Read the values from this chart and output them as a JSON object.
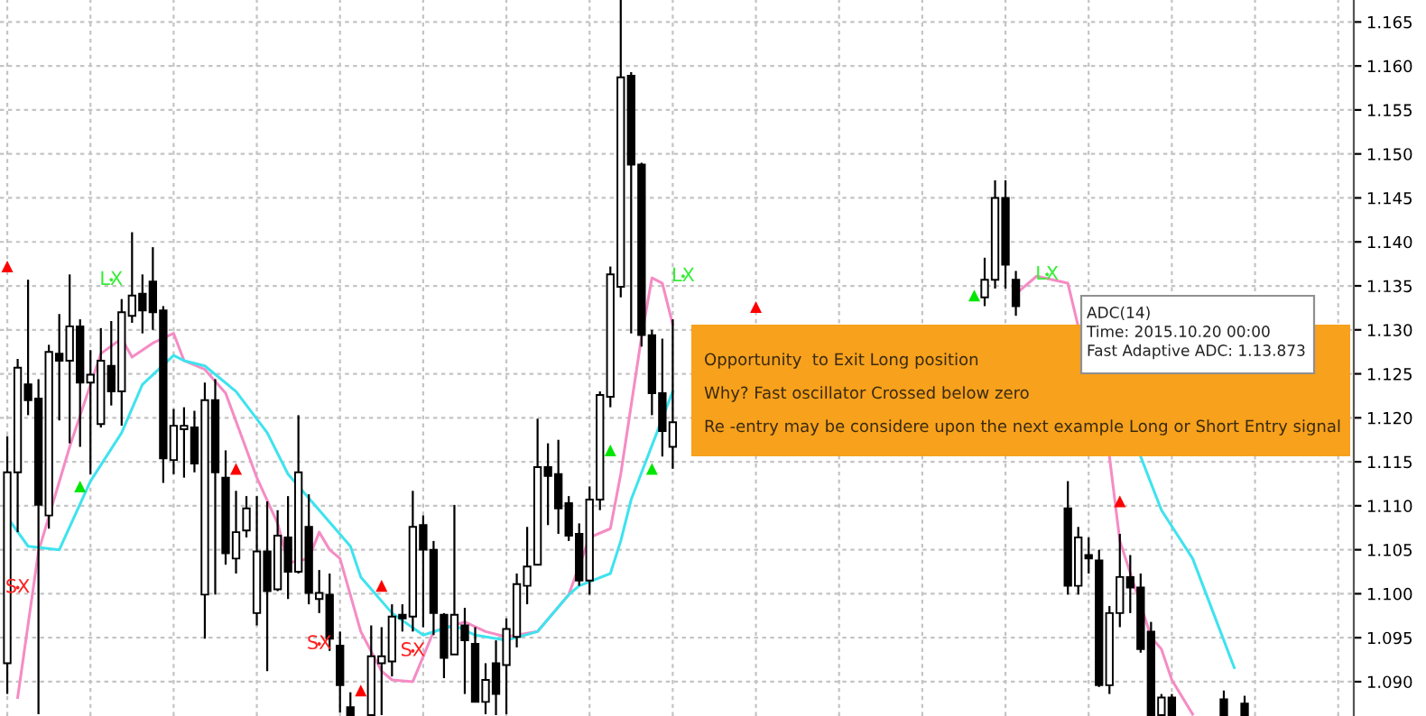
{
  "chart_data": {
    "type": "candlestick",
    "categories": [
      null,
      null,
      null,
      null,
      null,
      null,
      null,
      null,
      null,
      null,
      null,
      null,
      null,
      null,
      null,
      null,
      null,
      null,
      null,
      null,
      null,
      null,
      null,
      null,
      null,
      null,
      null,
      null,
      null,
      null,
      null,
      null,
      null,
      null,
      null,
      null,
      null,
      null,
      null,
      null,
      null,
      null,
      null,
      null,
      null,
      null,
      null,
      null,
      null,
      null,
      null,
      null,
      null,
      null,
      null,
      null,
      null,
      null,
      null,
      null,
      null,
      null,
      null,
      null,
      null,
      null,
      null,
      null,
      null,
      null,
      null,
      null,
      null,
      null,
      null,
      null,
      null,
      null,
      null,
      null,
      null,
      null,
      null,
      null,
      null,
      null,
      null,
      null,
      null,
      null,
      null,
      null,
      null,
      null,
      null,
      null,
      null,
      null,
      null,
      null,
      null,
      null,
      null,
      null,
      null,
      null,
      null,
      null,
      null,
      null,
      null,
      null,
      null,
      null,
      null,
      null,
      null,
      null,
      null,
      null,
      null,
      null,
      null,
      null,
      null,
      null,
      null,
      null,
      null,
      null
    ],
    "ohlc": [
      [
        1.0921,
        1.1179,
        1.0886,
        1.1138
      ],
      [
        1.1138,
        1.1267,
        1.107,
        1.1257
      ],
      [
        1.1238,
        1.1357,
        1.1203,
        1.122
      ],
      [
        1.1222,
        1.1244,
        1.0863,
        1.1101
      ],
      [
        1.1089,
        1.1283,
        1.1074,
        1.1275
      ],
      [
        1.1273,
        1.1318,
        1.1197,
        1.1265
      ],
      [
        1.1265,
        1.1363,
        1.1171,
        1.1304
      ],
      [
        1.1304,
        1.1312,
        1.1167,
        1.124
      ],
      [
        1.124,
        1.1277,
        1.1136,
        1.1249
      ],
      [
        1.1193,
        1.1302,
        1.1189,
        1.1265
      ],
      [
        1.1259,
        1.131,
        1.1214,
        1.123
      ],
      [
        1.123,
        1.1335,
        1.1191,
        1.132
      ],
      [
        1.1316,
        1.1411,
        1.1308,
        1.1339
      ],
      [
        1.1341,
        1.1363,
        1.1296,
        1.1322
      ],
      [
        1.1355,
        1.1394,
        1.13,
        1.132
      ],
      [
        1.1322,
        1.1327,
        1.1126,
        1.1154
      ],
      [
        1.1152,
        1.121,
        1.1136,
        1.1191
      ],
      [
        1.1187,
        1.1212,
        1.1132,
        1.1191
      ],
      [
        1.1189,
        1.1208,
        1.1138,
        1.1148
      ],
      [
        1.0999,
        1.124,
        1.0949,
        1.122
      ],
      [
        1.122,
        1.1244,
        1.0999,
        1.1138
      ],
      [
        1.1132,
        1.1163,
        1.1033,
        1.1046
      ],
      [
        1.104,
        1.1117,
        1.1023,
        1.107
      ],
      [
        1.1072,
        1.1111,
        1.1064,
        1.1097
      ],
      [
        1.0978,
        1.1111,
        1.0964,
        1.1048
      ],
      [
        1.1048,
        1.1105,
        1.0912,
        1.1003
      ],
      [
        1.1005,
        1.1095,
        1.1003,
        1.1066
      ],
      [
        1.1064,
        1.1111,
        1.0994,
        1.1025
      ],
      [
        1.1025,
        1.1203,
        1.1023,
        1.1138
      ],
      [
        1.1076,
        1.1113,
        1.0988,
        1.1001
      ],
      [
        1.0994,
        1.1027,
        1.0978,
        1.1001
      ],
      [
        1.0999,
        1.1023,
        1.0935,
        1.0949
      ],
      [
        1.0941,
        1.0957,
        1.0865,
        1.0896
      ],
      [
        1.0871,
        1.0888,
        1.0862,
        1.0862
      ],
      null,
      [
        1.0862,
        1.0964,
        1.0862,
        1.0929
      ],
      [
        1.0921,
        1.0962,
        1.0862,
        1.0929
      ],
      [
        1.0923,
        1.0988,
        1.0906,
        1.0974
      ],
      [
        1.0976,
        1.0988,
        1.0957,
        1.0972
      ],
      [
        1.0974,
        1.1117,
        1.0957,
        1.1076
      ],
      [
        1.1078,
        1.1089,
        1.0962,
        1.105
      ],
      [
        1.105,
        1.106,
        1.0953,
        1.0978
      ],
      [
        1.0976,
        1.0978,
        1.0904,
        1.0927
      ],
      [
        1.0931,
        1.1101,
        1.0931,
        1.0976
      ],
      [
        1.0964,
        1.0984,
        1.0886,
        1.0947
      ],
      [
        1.0943,
        1.0962,
        1.0877,
        1.0877
      ],
      [
        1.0877,
        1.0921,
        1.0863,
        1.0902
      ],
      [
        1.0921,
        1.0947,
        1.0862,
        1.0886
      ],
      [
        1.0919,
        1.0972,
        1.0863,
        1.096
      ],
      [
        1.0951,
        1.1023,
        1.0939,
        1.1011
      ],
      [
        1.1009,
        1.1076,
        1.0988,
        1.1031
      ],
      [
        1.1033,
        1.1199,
        1.1033,
        1.1144
      ],
      [
        1.1144,
        1.1171,
        1.1078,
        1.1134
      ],
      [
        1.1136,
        1.1175,
        1.1068,
        1.1097
      ],
      [
        1.1103,
        1.1111,
        1.106,
        1.1066
      ],
      [
        1.1068,
        1.108,
        1.1009,
        1.1015
      ],
      [
        1.1015,
        1.1122,
        1.0999,
        1.1107
      ],
      [
        1.1107,
        1.123,
        1.1095,
        1.1226
      ],
      [
        1.1224,
        1.1372,
        1.1212,
        1.1363
      ],
      [
        1.1349,
        1.1675,
        1.1337,
        1.1587
      ],
      [
        1.1589,
        1.1593,
        1.1296,
        1.1488
      ],
      [
        1.1488,
        1.149,
        1.1281,
        1.1294
      ],
      [
        1.1294,
        1.13,
        1.1203,
        1.1228
      ],
      [
        1.1228,
        1.129,
        1.1156,
        1.1185
      ],
      [
        1.1167,
        1.1312,
        1.1142,
        1.1195
      ],
      null,
      null,
      null,
      null,
      null,
      null,
      null,
      null,
      null,
      null,
      null,
      null,
      null,
      null,
      null,
      null,
      null,
      null,
      null,
      null,
      null,
      null,
      null,
      null,
      null,
      null,
      null,
      null,
      null,
      [
        1.1337,
        1.1382,
        1.1327,
        1.1357
      ],
      [
        1.1357,
        1.147,
        1.1347,
        1.145
      ],
      [
        1.145,
        1.147,
        1.1347,
        1.1374
      ],
      [
        1.1357,
        1.1367,
        1.1316,
        1.1327
      ],
      null,
      null,
      null,
      null,
      [
        1.1097,
        1.1128,
        1.0999,
        1.1009
      ],
      [
        1.1009,
        1.1076,
        1.0999,
        1.1064
      ],
      [
        1.1044,
        1.1064,
        1.1023,
        1.104
      ],
      [
        1.1038,
        1.105,
        1.0894,
        1.0896
      ],
      [
        1.0896,
        1.0986,
        1.0886,
        1.0978
      ],
      [
        1.0978,
        1.1068,
        1.0962,
        1.1019
      ],
      [
        1.1019,
        1.1044,
        1.0978,
        1.1007
      ],
      [
        1.1007,
        1.1023,
        1.0933,
        1.0937
      ],
      [
        1.0957,
        1.0968,
        1.0862,
        1.0862
      ],
      [
        1.0862,
        1.0886,
        1.0862,
        1.0882
      ],
      [
        1.0882,
        1.0886,
        1.0862,
        1.0862
      ],
      null,
      null,
      null,
      null,
      [
        1.088,
        1.089,
        1.0862,
        1.0862
      ],
      null,
      [
        1.0875,
        1.0884,
        1.0862,
        1.0862
      ],
      null,
      null,
      null,
      null,
      null,
      null,
      null,
      null,
      null,
      null
    ],
    "series": [
      {
        "type": "line",
        "color": "#f58cc4",
        "values": [
          null,
          1.0882,
          null,
          1.1048,
          null,
          null,
          1.1167,
          null,
          null,
          1.1273,
          null,
          1.129,
          1.1269,
          null,
          1.1285,
          null,
          1.1296,
          1.1265,
          null,
          1.1255,
          null,
          1.1228,
          null,
          null,
          1.1132,
          null,
          1.108,
          1.1035,
          null,
          1.104,
          1.107,
          1.105,
          1.104,
          null,
          1.0957,
          null,
          1.0912,
          1.0902,
          null,
          1.09,
          null,
          1.0957,
          null,
          null,
          1.0968,
          null,
          1.0957,
          null,
          1.0951,
          null,
          null,
          1.0957,
          null,
          null,
          1.0999,
          null,
          1.1064,
          null,
          1.1074,
          1.1136,
          null,
          1.1292,
          1.1359,
          1.1353,
          1.1306,
          null,
          null,
          null,
          null,
          null,
          null,
          null,
          null,
          null,
          null,
          null,
          null,
          null,
          null,
          null,
          null,
          null,
          null,
          null,
          null,
          null,
          null,
          null,
          null,
          null,
          null,
          null,
          null,
          null,
          null,
          null,
          null,
          1.1341,
          null,
          1.1361,
          null,
          null,
          1.1353,
          null,
          null,
          null,
          1.1156,
          1.106,
          null,
          null,
          1.0951,
          1.0937,
          1.0902,
          null,
          1.0863,
          null,
          null,
          null,
          null,
          null,
          null,
          null,
          null,
          null,
          null,
          null,
          null,
          null,
          null,
          null
        ]
      },
      {
        "type": "line",
        "color": "#3fe3ee",
        "values": [
          1.1087,
          null,
          1.1054,
          null,
          null,
          1.105,
          null,
          null,
          1.1128,
          null,
          null,
          1.1183,
          null,
          1.1238,
          null,
          null,
          1.1271,
          1.1265,
          null,
          1.1259,
          null,
          null,
          1.123,
          null,
          null,
          1.1183,
          null,
          1.1136,
          null,
          null,
          1.1095,
          null,
          null,
          1.1054,
          1.1019,
          null,
          null,
          1.0978,
          null,
          null,
          1.0953,
          null,
          null,
          1.0964,
          null,
          1.0953,
          null,
          null,
          1.0947,
          null,
          null,
          1.0957,
          null,
          null,
          1.0999,
          1.1009,
          null,
          null,
          1.1023,
          1.106,
          1.1107,
          null,
          null,
          null,
          1.123,
          null,
          null,
          null,
          null,
          null,
          null,
          null,
          null,
          null,
          null,
          null,
          null,
          null,
          null,
          null,
          null,
          null,
          null,
          null,
          null,
          null,
          null,
          null,
          null,
          null,
          null,
          null,
          null,
          null,
          null,
          null,
          null,
          null,
          null,
          null,
          null,
          null,
          null,
          null,
          null,
          null,
          null,
          null,
          null,
          1.1156,
          null,
          1.1095,
          null,
          null,
          1.104,
          null,
          1.0978,
          null,
          1.0916,
          null,
          null,
          null,
          null,
          null,
          null,
          null,
          null,
          null,
          null,
          null
        ]
      },
      {
        "type": "scatter",
        "marker": "triangle",
        "color": "#ff0000",
        "values": [
          1.1372,
          null,
          null,
          null,
          null,
          null,
          null,
          null,
          null,
          null,
          null,
          null,
          null,
          null,
          null,
          null,
          null,
          null,
          null,
          null,
          null,
          null,
          1.1142,
          null,
          null,
          null,
          null,
          null,
          null,
          null,
          null,
          null,
          null,
          null,
          1.089,
          null,
          1.1009,
          null,
          null,
          null,
          null,
          null,
          null,
          null,
          null,
          null,
          null,
          null,
          null,
          null,
          null,
          null,
          null,
          null,
          null,
          null,
          null,
          null,
          null,
          null,
          null,
          null,
          null,
          null,
          null,
          null,
          null,
          null,
          null,
          null,
          null,
          null,
          1.1326,
          null,
          null,
          null,
          null,
          null,
          null,
          null,
          null,
          null,
          null,
          null,
          null,
          null,
          null,
          null,
          null,
          null,
          null,
          null,
          null,
          null,
          null,
          null,
          null,
          null,
          null,
          null,
          null,
          null,
          null,
          null,
          null,
          null,
          null,
          1.1105,
          null,
          null,
          null,
          null,
          null,
          null,
          null,
          null,
          null,
          null,
          null,
          null,
          null,
          null,
          null,
          null,
          null,
          null,
          null,
          null,
          null,
          null
        ]
      },
      {
        "type": "scatter",
        "marker": "triangle",
        "color": "#00e600",
        "values": [
          null,
          null,
          null,
          null,
          null,
          null,
          null,
          1.1122,
          null,
          null,
          null,
          null,
          null,
          null,
          null,
          null,
          null,
          null,
          null,
          null,
          null,
          null,
          null,
          null,
          null,
          null,
          null,
          null,
          null,
          null,
          null,
          null,
          null,
          null,
          null,
          null,
          null,
          null,
          null,
          null,
          null,
          null,
          null,
          null,
          null,
          null,
          null,
          null,
          null,
          null,
          null,
          null,
          null,
          null,
          null,
          null,
          null,
          null,
          1.1163,
          null,
          null,
          null,
          1.1142,
          null,
          null,
          null,
          null,
          null,
          null,
          null,
          null,
          null,
          null,
          null,
          null,
          null,
          null,
          null,
          null,
          null,
          null,
          null,
          null,
          null,
          null,
          null,
          null,
          null,
          null,
          null,
          null,
          null,
          null,
          1.1339,
          null,
          null,
          null,
          null,
          null,
          null,
          null,
          null,
          null,
          null,
          null,
          null,
          null,
          null,
          null,
          null,
          null,
          null,
          null,
          null,
          null,
          null,
          null,
          null,
          null,
          null,
          null,
          null,
          null,
          null,
          null,
          null,
          null,
          null,
          null,
          null
        ]
      },
      {
        "type": "scatter",
        "marker": "none",
        "color": "#33ee33",
        "value_labels": [
          null,
          null,
          null,
          null,
          null,
          null,
          null,
          null,
          null,
          null,
          "LX",
          null,
          null,
          null,
          null,
          null,
          null,
          null,
          null,
          null,
          null,
          null,
          null,
          null,
          null,
          null,
          null,
          null,
          null,
          null,
          null,
          null,
          null,
          null,
          null,
          null,
          null,
          null,
          null,
          null,
          null,
          null,
          null,
          null,
          null,
          null,
          null,
          null,
          null,
          null,
          null,
          null,
          null,
          null,
          null,
          null,
          null,
          null,
          null,
          null,
          null,
          null,
          null,
          null,
          null,
          "LX",
          null,
          null,
          null,
          null,
          null,
          null,
          null,
          null,
          null,
          null,
          null,
          null,
          null,
          null,
          null,
          null,
          null,
          null,
          null,
          null,
          null,
          null,
          null,
          null,
          null,
          null,
          null,
          null,
          null,
          null,
          null,
          null,
          null,
          null,
          "LX",
          null,
          null,
          null,
          null,
          null,
          null,
          null,
          null,
          null,
          null,
          null,
          null,
          null,
          null,
          null,
          null,
          null,
          null,
          null,
          null,
          null,
          null,
          null,
          null,
          null,
          null,
          null,
          null,
          null
        ],
        "values": [
          null,
          null,
          null,
          null,
          null,
          null,
          null,
          null,
          null,
          null,
          1.1357,
          null,
          null,
          null,
          null,
          null,
          null,
          null,
          null,
          null,
          null,
          null,
          null,
          null,
          null,
          null,
          null,
          null,
          null,
          null,
          null,
          null,
          null,
          null,
          null,
          null,
          null,
          null,
          null,
          null,
          null,
          null,
          null,
          null,
          null,
          null,
          null,
          null,
          null,
          null,
          null,
          null,
          null,
          null,
          null,
          null,
          null,
          null,
          null,
          null,
          null,
          null,
          null,
          null,
          null,
          1.1361,
          null,
          null,
          null,
          null,
          null,
          null,
          null,
          null,
          null,
          null,
          null,
          null,
          null,
          null,
          null,
          null,
          null,
          null,
          null,
          null,
          null,
          null,
          null,
          null,
          null,
          null,
          null,
          null,
          null,
          null,
          null,
          null,
          null,
          null,
          1.1363,
          null,
          null,
          null,
          null,
          null,
          null,
          null,
          null,
          null,
          null,
          null,
          null,
          null,
          null,
          null,
          null,
          null,
          null,
          null,
          null,
          null,
          null,
          null,
          null,
          null,
          null,
          null,
          null,
          null
        ]
      },
      {
        "type": "scatter",
        "marker": "none",
        "color": "#ff2020",
        "value_labels": [
          null,
          "SX",
          null,
          null,
          null,
          null,
          null,
          null,
          null,
          null,
          null,
          null,
          null,
          null,
          null,
          null,
          null,
          null,
          null,
          null,
          null,
          null,
          null,
          null,
          null,
          null,
          null,
          null,
          null,
          null,
          "SX",
          null,
          null,
          null,
          null,
          null,
          null,
          null,
          null,
          "SX",
          null,
          null,
          null,
          null,
          null,
          null,
          null,
          null,
          null,
          null,
          null,
          null,
          null,
          null,
          null,
          null,
          null,
          null,
          null,
          null,
          null,
          null,
          null,
          null,
          null,
          null,
          null,
          null,
          null,
          null,
          null,
          null,
          null,
          null,
          null,
          null,
          null,
          null,
          null,
          null,
          null,
          null,
          null,
          null,
          null,
          null,
          null,
          null,
          null,
          null,
          null,
          null,
          null,
          null,
          null,
          null,
          null,
          null,
          null,
          null,
          null,
          null,
          null,
          null,
          null,
          null,
          null,
          null,
          null,
          null,
          null,
          null,
          null,
          null,
          null,
          null,
          null,
          null,
          null,
          null,
          null,
          null,
          null,
          null,
          null,
          null,
          null,
          null,
          null,
          null
        ],
        "values": [
          null,
          1.1007,
          null,
          null,
          null,
          null,
          null,
          null,
          null,
          null,
          null,
          null,
          null,
          null,
          null,
          null,
          null,
          null,
          null,
          null,
          null,
          null,
          null,
          null,
          null,
          null,
          null,
          null,
          null,
          null,
          1.0943,
          null,
          null,
          null,
          null,
          null,
          null,
          null,
          null,
          1.0935,
          null,
          null,
          null,
          null,
          null,
          null,
          null,
          null,
          null,
          null,
          null,
          null,
          null,
          null,
          null,
          null,
          null,
          null,
          null,
          null,
          null,
          null,
          null,
          null,
          null,
          null,
          null,
          null,
          null,
          null,
          null,
          null,
          null,
          null,
          null,
          null,
          null,
          null,
          null,
          null,
          null,
          null,
          null,
          null,
          null,
          null,
          null,
          null,
          null,
          null,
          null,
          null,
          null,
          null,
          null,
          null,
          null,
          null,
          null,
          null,
          null,
          null,
          null,
          null,
          null,
          null,
          null,
          null,
          null,
          null,
          null,
          null,
          null,
          null,
          null,
          null,
          null,
          null,
          null,
          null,
          null,
          null,
          null,
          null,
          null,
          null,
          null,
          null,
          null,
          null
        ]
      }
    ],
    "ylim": [
      1.0861,
      1.1675
    ],
    "yticks": [
      {
        "value": 1.09,
        "label": "1.090"
      },
      {
        "value": 1.095,
        "label": "1.095"
      },
      {
        "value": 1.1,
        "label": "1.100"
      },
      {
        "value": 1.105,
        "label": "1.105"
      },
      {
        "value": 1.11,
        "label": "1.110"
      },
      {
        "value": 1.115,
        "label": "1.115"
      },
      {
        "value": 1.12,
        "label": "1.120"
      },
      {
        "value": 1.125,
        "label": "1.125"
      },
      {
        "value": 1.13,
        "label": "1.130"
      },
      {
        "value": 1.135,
        "label": "1.135"
      },
      {
        "value": 1.14,
        "label": "1.140"
      },
      {
        "value": 1.145,
        "label": "1.145"
      },
      {
        "value": 1.15,
        "label": "1.150"
      },
      {
        "value": 1.155,
        "label": "1.155"
      },
      {
        "value": 1.16,
        "label": "1.160"
      },
      {
        "value": 1.165,
        "label": "1.165"
      }
    ],
    "grid": true,
    "annotations": [
      "Opportunity  to Exit Long position",
      "Why? Fast oscillator Crossed below zero",
      "Re -entry may be considere upon the next example Long or Short Entry signal",
      "ADC(14)",
      "Time: 2015.10.20 00:00",
      "Fast Adaptive ADC: 1.13.873"
    ]
  }
}
